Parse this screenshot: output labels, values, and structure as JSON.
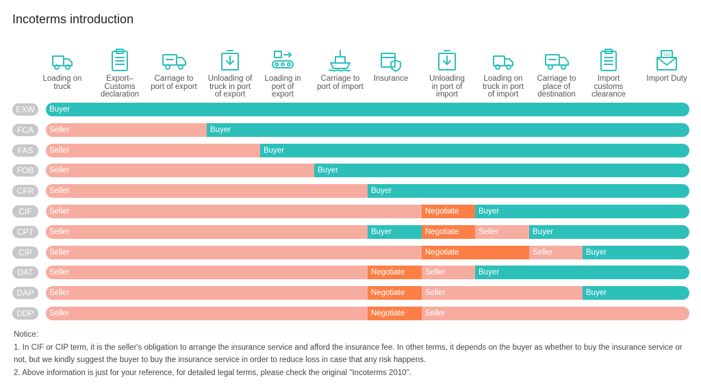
{
  "title": "Incoterms introduction",
  "colors": {
    "seller": "#f7aca0",
    "buyer": "#2dbfba",
    "negotiate": "#fb7f47",
    "term_pill": "#c8c8c8",
    "icon": "#2dbfba"
  },
  "columns": [
    {
      "label": "Loading on\ntruck",
      "icon": "truck-icon"
    },
    {
      "label": "Export–\nCustoms\ndeclaration",
      "icon": "clipboard-icon"
    },
    {
      "label": "Carriage to\nport of export",
      "icon": "delivery-truck-icon"
    },
    {
      "label": "Unloading of\ntruck in port\nof export",
      "icon": "box-down-icon"
    },
    {
      "label": "Loading in\nport of\nexport",
      "icon": "conveyor-icon"
    },
    {
      "label": "Carriage to\nport of import",
      "icon": "ship-icon"
    },
    {
      "label": "Insurance",
      "icon": "shield-box-icon"
    },
    {
      "label": "Unloading\nin port of\nimport",
      "icon": "box-down-icon"
    },
    {
      "label": "Loading on\ntruck in port\nof import",
      "icon": "truck-icon"
    },
    {
      "label": "Carriage to\nplace of\ndestination",
      "icon": "delivery-truck-icon"
    },
    {
      "label": "Import\ncustoms\nclearance",
      "icon": "clipboard-icon"
    },
    {
      "label": "Import Duty",
      "icon": "tax-envelope-icon"
    }
  ],
  "terms": [
    {
      "code": "EXW",
      "segments": [
        {
          "party": "buyer",
          "label": "Buyer",
          "from": 0,
          "to": 12
        }
      ]
    },
    {
      "code": "FCA",
      "segments": [
        {
          "party": "seller",
          "label": "Seller",
          "from": 0,
          "to": 3
        },
        {
          "party": "buyer",
          "label": "Buyer",
          "from": 3,
          "to": 12
        }
      ]
    },
    {
      "code": "FAS",
      "segments": [
        {
          "party": "seller",
          "label": "Seller",
          "from": 0,
          "to": 4
        },
        {
          "party": "buyer",
          "label": "Buyer",
          "from": 4,
          "to": 12
        }
      ]
    },
    {
      "code": "FOB",
      "segments": [
        {
          "party": "seller",
          "label": "Seller",
          "from": 0,
          "to": 5
        },
        {
          "party": "buyer",
          "label": "Buyer",
          "from": 5,
          "to": 12
        }
      ]
    },
    {
      "code": "CFR",
      "segments": [
        {
          "party": "seller",
          "label": "Seller",
          "from": 0,
          "to": 6
        },
        {
          "party": "buyer",
          "label": "Buyer",
          "from": 6,
          "to": 12
        }
      ]
    },
    {
      "code": "CIF",
      "segments": [
        {
          "party": "seller",
          "label": "Seller",
          "from": 0,
          "to": 7
        },
        {
          "party": "negotiate",
          "label": "Negotiate",
          "from": 7,
          "to": 8
        },
        {
          "party": "buyer",
          "label": "Buyer",
          "from": 8,
          "to": 12
        }
      ]
    },
    {
      "code": "CPT",
      "segments": [
        {
          "party": "seller",
          "label": "Seller",
          "from": 0,
          "to": 6
        },
        {
          "party": "buyer",
          "label": "Buyer",
          "from": 6,
          "to": 7
        },
        {
          "party": "negotiate",
          "label": "Negotiate",
          "from": 7,
          "to": 8
        },
        {
          "party": "seller",
          "label": "Seller",
          "from": 8,
          "to": 9
        },
        {
          "party": "buyer",
          "label": "Buyer",
          "from": 9,
          "to": 12
        }
      ]
    },
    {
      "code": "CIP",
      "segments": [
        {
          "party": "seller",
          "label": "Seller",
          "from": 0,
          "to": 7
        },
        {
          "party": "negotiate",
          "label": "Negotiate",
          "from": 7,
          "to": 9
        },
        {
          "party": "seller",
          "label": "Seller",
          "from": 9,
          "to": 10
        },
        {
          "party": "buyer",
          "label": "Buyer",
          "from": 10,
          "to": 12
        }
      ]
    },
    {
      "code": "DAT",
      "segments": [
        {
          "party": "seller",
          "label": "Seller",
          "from": 0,
          "to": 6
        },
        {
          "party": "negotiate",
          "label": "Negotiate",
          "from": 6,
          "to": 7
        },
        {
          "party": "seller",
          "label": "Seller",
          "from": 7,
          "to": 8
        },
        {
          "party": "buyer",
          "label": "Buyer",
          "from": 8,
          "to": 12
        }
      ]
    },
    {
      "code": "DAP",
      "segments": [
        {
          "party": "seller",
          "label": "Seller",
          "from": 0,
          "to": 6
        },
        {
          "party": "negotiate",
          "label": "Negotiate",
          "from": 6,
          "to": 7
        },
        {
          "party": "seller",
          "label": "Seller",
          "from": 7,
          "to": 10
        },
        {
          "party": "buyer",
          "label": "Buyer",
          "from": 10,
          "to": 12
        }
      ]
    },
    {
      "code": "DDP",
      "segments": [
        {
          "party": "seller",
          "label": "Seller",
          "from": 0,
          "to": 6
        },
        {
          "party": "negotiate",
          "label": "Negotiate",
          "from": 6,
          "to": 7
        },
        {
          "party": "seller",
          "label": "Seller",
          "from": 7,
          "to": 12
        }
      ]
    }
  ],
  "notice": {
    "heading": "Notice:",
    "lines": [
      "1. In CIF or CIP term, it is the seller's obligation to arrange the insurance service and afford the insurance fee. In other terms, it depends on the buyer as whether to buy the insurance service or not, but we kindly suggest the buyer to buy the insurance service in order to reduce loss in case that any risk happens.",
      "2. Above information is just for your reference, for detailed legal terms, please check the original \"Incoterms 2010\"."
    ]
  }
}
